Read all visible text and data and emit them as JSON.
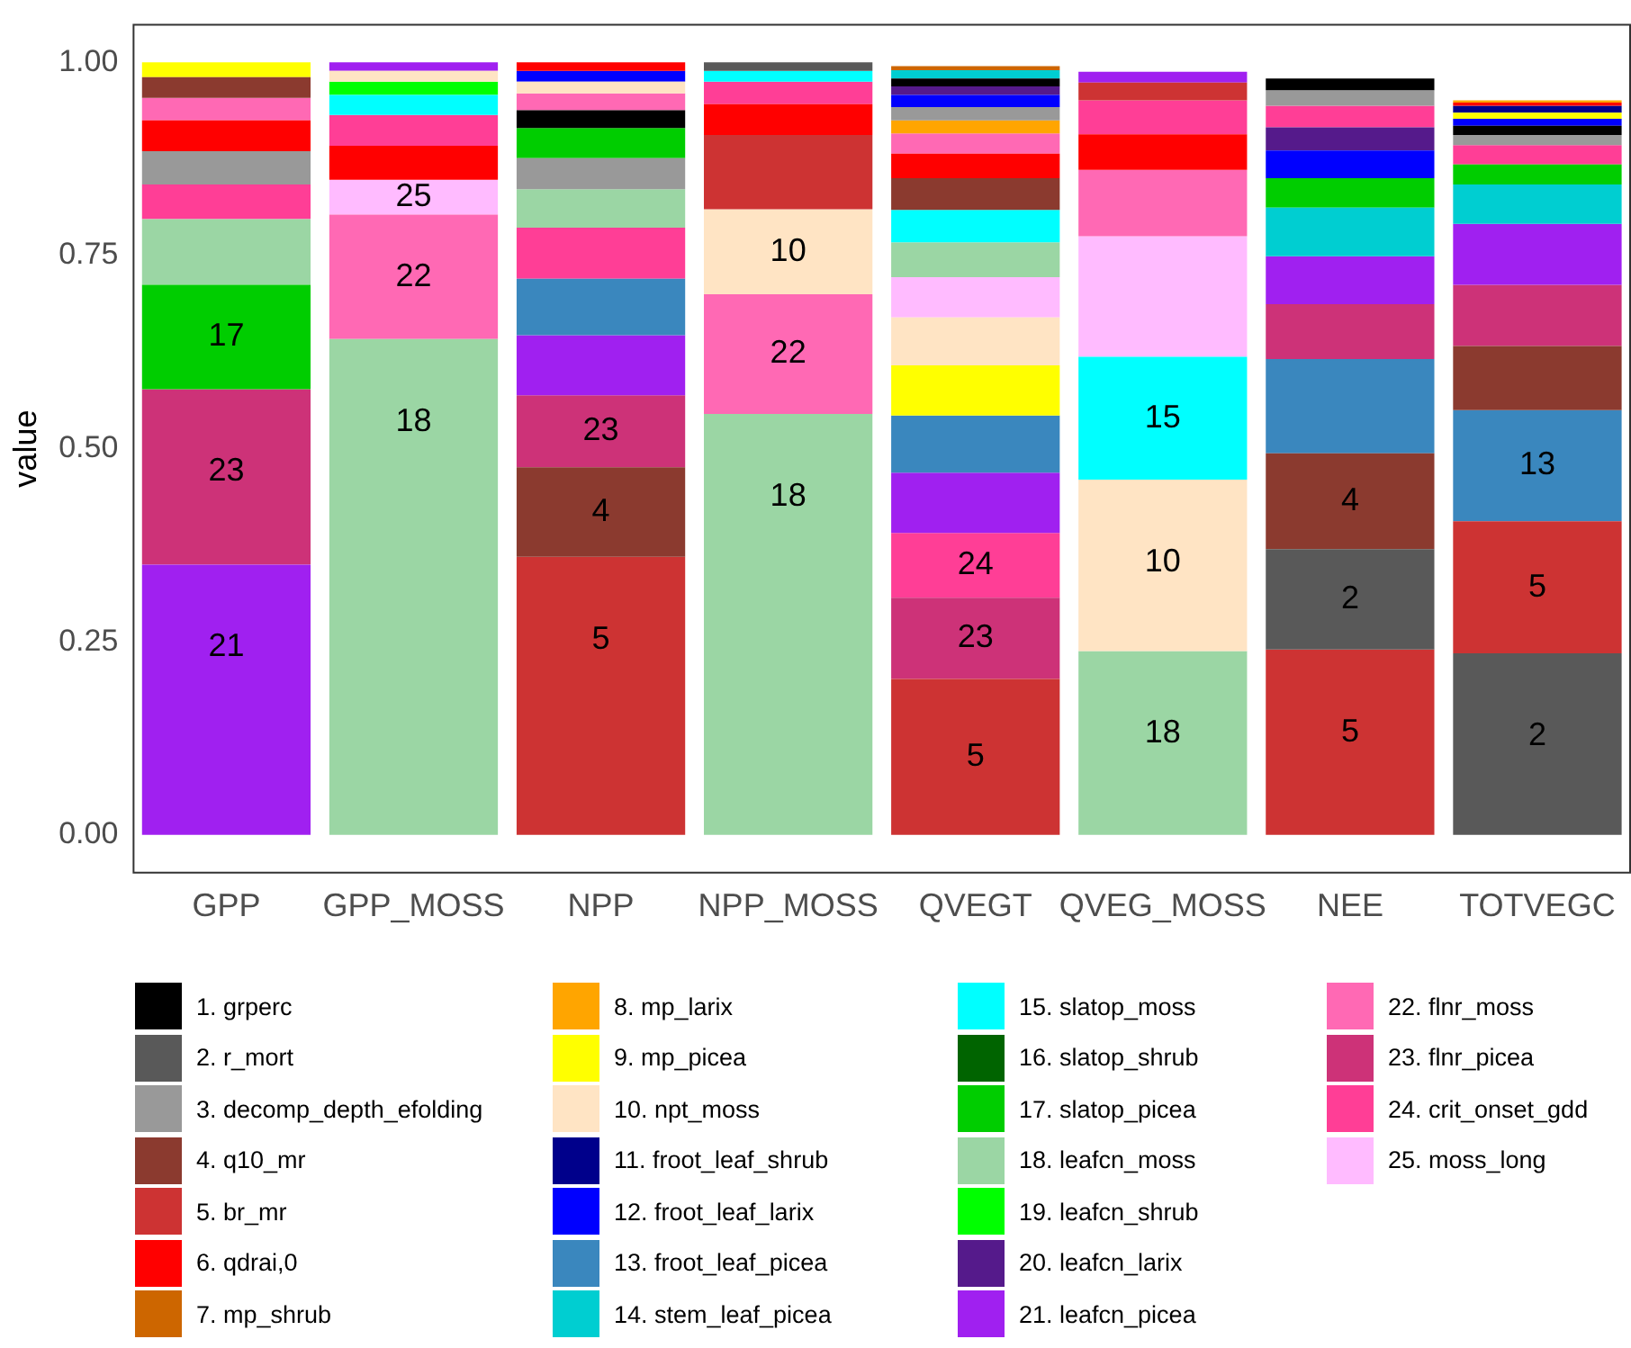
{
  "chart_data": {
    "type": "bar",
    "ylabel": "value",
    "categories": [
      "GPP",
      "GPP_MOSS",
      "NPP",
      "NPP_MOSS",
      "QVEGT",
      "QVEG_MOSS",
      "NEE",
      "TOTVEGC"
    ],
    "ylim": [
      -0.05,
      1.05
    ],
    "yticks": [
      {
        "value": 0,
        "label": "0.00"
      },
      {
        "value": 0.25,
        "label": "0.25"
      },
      {
        "value": 0.5,
        "label": "0.50"
      },
      {
        "value": 0.75,
        "label": "0.75"
      },
      {
        "value": 1,
        "label": "1.00"
      }
    ],
    "legend": "bottom",
    "annotations": [
      {
        "text": "21",
        "x": "GPP",
        "y": 0.35
      },
      {
        "text": "23",
        "x": "GPP",
        "y": 0.577
      },
      {
        "text": "17",
        "x": "GPP",
        "y": 0.712
      },
      {
        "text": "18",
        "x": "GPP_MOSS",
        "y": 0.642
      },
      {
        "text": "22",
        "x": "GPP_MOSS",
        "y": 0.803
      },
      {
        "text": "25",
        "x": "GPP_MOSS",
        "y": 0.848
      },
      {
        "text": "5",
        "x": "NPP",
        "y": 0.36
      },
      {
        "text": "4",
        "x": "NPP",
        "y": 0.476
      },
      {
        "text": "23",
        "x": "NPP",
        "y": 0.569
      },
      {
        "text": "18",
        "x": "NPP_MOSS",
        "y": 0.545
      },
      {
        "text": "22",
        "x": "NPP_MOSS",
        "y": 0.7
      },
      {
        "text": "10",
        "x": "NPP_MOSS",
        "y": 0.81
      },
      {
        "text": "5",
        "x": "QVEGT",
        "y": 0.202
      },
      {
        "text": "23",
        "x": "QVEGT",
        "y": 0.307
      },
      {
        "text": "24",
        "x": "QVEGT",
        "y": 0.391
      },
      {
        "text": "18",
        "x": "QVEG_MOSS",
        "y": 0.238
      },
      {
        "text": "10",
        "x": "QVEG_MOSS",
        "y": 0.46
      },
      {
        "text": "15",
        "x": "QVEG_MOSS",
        "y": 0.619
      },
      {
        "text": "5",
        "x": "NEE",
        "y": 0.24
      },
      {
        "text": "2",
        "x": "NEE",
        "y": 0.37
      },
      {
        "text": "4",
        "x": "NEE",
        "y": 0.494
      },
      {
        "text": "2",
        "x": "TOTVEGC",
        "y": 0.235
      },
      {
        "text": "5",
        "x": "TOTVEGC",
        "y": 0.406
      },
      {
        "text": "13",
        "x": "TOTVEGC",
        "y": 0.55
      }
    ],
    "series": [
      {
        "name": "1. grperc",
        "color": "#000000",
        "values": [
          null,
          null,
          0.023,
          null,
          0.01,
          null,
          0.015,
          0.012
        ],
        "base": [
          null,
          null,
          0.915,
          null,
          0.969,
          null,
          0.964,
          0.906
        ]
      },
      {
        "name": "2. r_mort",
        "color": "#595959",
        "values": [
          null,
          null,
          null,
          0.011,
          null,
          null,
          0.13,
          0.235
        ],
        "base": [
          null,
          null,
          null,
          0.989,
          null,
          null,
          0.24,
          0
        ]
      },
      {
        "name": "3. decomp_depth_efolding",
        "color": "#999999",
        "values": [
          0.043,
          null,
          0.04,
          null,
          0.017,
          null,
          0.02,
          0.013
        ],
        "base": [
          0.842,
          null,
          0.836,
          null,
          0.925,
          null,
          0.944,
          0.893
        ]
      },
      {
        "name": "4. q10_mr",
        "color": "#8b3a2f",
        "values": [
          0.027,
          null,
          0.116,
          null,
          0.041,
          null,
          0.124,
          0.083
        ],
        "base": [
          0.954,
          null,
          0.36,
          null,
          0.809,
          null,
          0.37,
          0.55
        ]
      },
      {
        "name": "5. br_mr",
        "color": "#cd3333",
        "values": [
          null,
          null,
          0.36,
          0.096,
          0.202,
          0.023,
          0.24,
          0.171
        ],
        "base": [
          null,
          null,
          0,
          0.81,
          0,
          0.951,
          0,
          0.235
        ]
      },
      {
        "name": "6. qdrai,0",
        "color": "#ff0000",
        "values": [
          0.04,
          0.044,
          0.011,
          0.04,
          0.032,
          0.046,
          null,
          0.004
        ],
        "base": [
          0.885,
          0.848,
          0.989,
          0.906,
          0.85,
          0.861,
          null,
          0.944
        ]
      },
      {
        "name": "7. mp_shrub",
        "color": "#cd6600",
        "values": [
          null,
          null,
          null,
          null,
          0.005,
          null,
          null,
          null
        ],
        "base": [
          null,
          null,
          null,
          null,
          0.99,
          null,
          null,
          null
        ]
      },
      {
        "name": "8. mp_larix",
        "color": "#ffa500",
        "values": [
          null,
          null,
          null,
          null,
          0.017,
          null,
          null,
          0.003
        ],
        "base": [
          null,
          null,
          null,
          null,
          0.908,
          null,
          null,
          0.948
        ]
      },
      {
        "name": "9. mp_picea",
        "color": "#ffff00",
        "values": [
          0.019,
          null,
          null,
          null,
          0.065,
          null,
          null,
          0.008
        ],
        "base": [
          0.981,
          null,
          null,
          null,
          0.543,
          null,
          null,
          0.927
        ]
      },
      {
        "name": "10. npt_moss",
        "color": "#ffe4c4",
        "values": [
          null,
          0.014,
          0.015,
          0.11,
          0.062,
          0.222,
          null,
          null
        ],
        "base": [
          null,
          0.975,
          0.96,
          0.7,
          0.608,
          0.238,
          null,
          null
        ]
      },
      {
        "name": "11. froot_leaf_shrub",
        "color": "#00008b",
        "values": [
          null,
          null,
          null,
          null,
          null,
          null,
          null,
          0.009
        ],
        "base": [
          null,
          null,
          null,
          null,
          null,
          null,
          null,
          0.935
        ]
      },
      {
        "name": "12. froot_leaf_larix",
        "color": "#0000ff",
        "values": [
          null,
          null,
          0.014,
          null,
          0.016,
          null,
          0.036,
          0.009
        ],
        "base": [
          null,
          null,
          0.975,
          null,
          0.942,
          null,
          0.85,
          0.918
        ]
      },
      {
        "name": "13. froot_leaf_picea",
        "color": "#3a87be",
        "values": [
          null,
          null,
          0.073,
          null,
          0.074,
          null,
          0.122,
          0.144
        ],
        "base": [
          null,
          null,
          0.647,
          null,
          0.469,
          null,
          0.494,
          0.406
        ]
      },
      {
        "name": "14. stem_leaf_picea",
        "color": "#00ced1",
        "values": [
          null,
          null,
          null,
          null,
          0.011,
          null,
          0.063,
          0.051
        ],
        "base": [
          null,
          null,
          null,
          null,
          0.979,
          null,
          0.749,
          0.791
        ]
      },
      {
        "name": "15. slatop_moss",
        "color": "#00ffff",
        "values": [
          null,
          0.026,
          null,
          0.014,
          0.042,
          0.159,
          null,
          null
        ],
        "base": [
          null,
          0.932,
          null,
          0.975,
          0.767,
          0.46,
          null,
          null
        ]
      },
      {
        "name": "16. slatop_shrub",
        "color": "#006400",
        "values": [
          null,
          null,
          null,
          null,
          null,
          null,
          null,
          null
        ],
        "base": [
          null,
          null,
          null,
          null,
          null,
          null,
          null,
          null
        ]
      },
      {
        "name": "17. slatop_picea",
        "color": "#00cd00",
        "values": [
          0.135,
          null,
          0.039,
          null,
          null,
          null,
          0.038,
          0.026
        ],
        "base": [
          0.577,
          null,
          0.876,
          null,
          null,
          null,
          0.812,
          0.842
        ]
      },
      {
        "name": "18. leafcn_moss",
        "color": "#9bd6a4",
        "values": [
          0.085,
          0.642,
          0.05,
          0.545,
          0.045,
          0.238,
          null,
          null
        ],
        "base": [
          0.712,
          0,
          0.786,
          0,
          0.722,
          0,
          null,
          null
        ]
      },
      {
        "name": "19. leafcn_shrub",
        "color": "#00ff00",
        "values": [
          null,
          0.017,
          null,
          null,
          null,
          null,
          null,
          null
        ],
        "base": [
          null,
          0.958,
          null,
          null,
          null,
          null,
          null,
          null
        ]
      },
      {
        "name": "20. leafcn_larix",
        "color": "#551a8b",
        "values": [
          null,
          null,
          null,
          null,
          0.011,
          null,
          0.03,
          null
        ],
        "base": [
          null,
          null,
          null,
          null,
          0.958,
          null,
          0.886,
          null
        ]
      },
      {
        "name": "21. leafcn_picea",
        "color": "#a020f0",
        "values": [
          0.35,
          0.011,
          0.078,
          null,
          0.078,
          0.014,
          0.062,
          0.079
        ],
        "base": [
          0,
          0.989,
          0.569,
          null,
          0.391,
          0.974,
          0.687,
          0.712
        ]
      },
      {
        "name": "22. flnr_moss",
        "color": "#ff69b4",
        "values": [
          0.029,
          0.161,
          0.022,
          0.155,
          0.026,
          0.086,
          null,
          null
        ],
        "base": [
          0.925,
          0.642,
          0.938,
          0.545,
          0.882,
          0.775,
          null,
          null
        ]
      },
      {
        "name": "23. flnr_picea",
        "color": "#cd3278",
        "values": [
          0.227,
          null,
          0.093,
          null,
          0.105,
          null,
          0.071,
          0.079
        ],
        "base": [
          0.35,
          null,
          0.476,
          null,
          0.202,
          null,
          0.616,
          0.633
        ]
      },
      {
        "name": "24. crit_onset_gdd",
        "color": "#ff3e96",
        "values": [
          0.045,
          0.04,
          0.066,
          0.029,
          0.084,
          0.044,
          0.028,
          0.025
        ],
        "base": [
          0.797,
          0.892,
          0.72,
          0.946,
          0.307,
          0.907,
          0.916,
          0.868
        ]
      },
      {
        "name": "25. moss_long",
        "color": "#ffbbff",
        "values": [
          null,
          0.045,
          null,
          null,
          0.052,
          0.156,
          null,
          null
        ],
        "base": [
          null,
          0.803,
          null,
          null,
          0.67,
          0.619,
          null,
          null
        ]
      }
    ]
  }
}
